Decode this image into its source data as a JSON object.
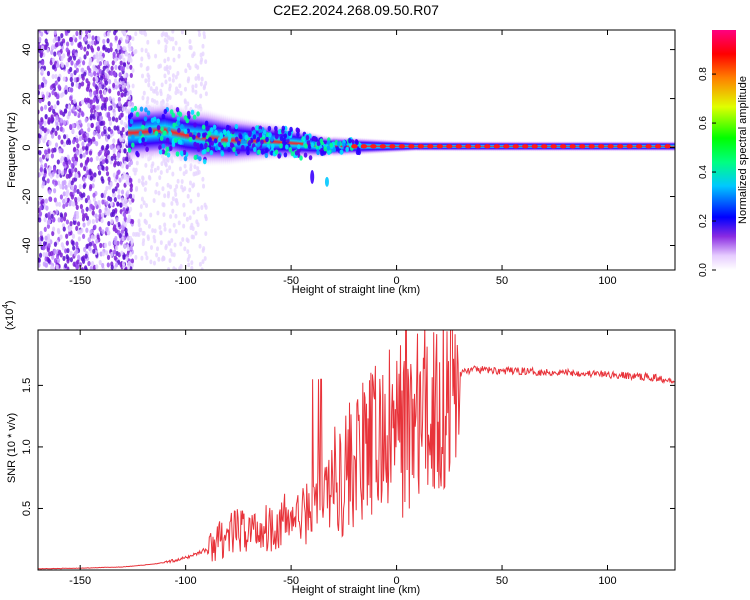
{
  "figure": {
    "title": "C2E2.2024.268.09.50.R07"
  },
  "chart_data": [
    {
      "type": "heatmap",
      "xlabel": "Height of straight line (km)",
      "ylabel": "Frequency (Hz)",
      "xlim": [
        -170,
        132
      ],
      "ylim": [
        -50,
        48
      ],
      "xticks": [
        "-150",
        "-100",
        "-50",
        "0",
        "50",
        "100"
      ],
      "yticks": [
        "40",
        "20",
        "0",
        "-20",
        "-40"
      ],
      "colorbar": {
        "label": "Normalized spectral amplitude",
        "range": [
          0,
          0.98
        ],
        "ticks": [
          "0.0",
          "0.2",
          "0.4",
          "0.6",
          "0.8"
        ]
      },
      "band_center_hz": [
        {
          "x": -125,
          "y": 6
        },
        {
          "x": -110,
          "y": 7
        },
        {
          "x": -100,
          "y": 5
        },
        {
          "x": -80,
          "y": 3
        },
        {
          "x": -60,
          "y": 2.5
        },
        {
          "x": -45,
          "y": 1.5
        },
        {
          "x": -35,
          "y": 0.5
        },
        {
          "x": -20,
          "y": 0.5
        },
        {
          "x": 0,
          "y": 0.5
        },
        {
          "x": 50,
          "y": 0.5
        },
        {
          "x": 100,
          "y": 0.5
        },
        {
          "x": 130,
          "y": 0.5
        }
      ]
    },
    {
      "type": "line",
      "xlabel": "Height of straight line (km)",
      "ylabel": "SNR (10 * v/v)",
      "multiplier": "(x10",
      "multiplier_exp": "4",
      "xlim": [
        -170,
        132
      ],
      "ylim": [
        0,
        1.95
      ],
      "xticks": [
        "-150",
        "-100",
        "-50",
        "0",
        "50",
        "100"
      ],
      "yticks": [
        "0.5",
        "1.0",
        "1.5"
      ],
      "color": "#e8333a",
      "series": [
        {
          "x": [
            -170,
            -150,
            -130,
            -120,
            -110,
            -100,
            -90,
            -85,
            -80,
            -75,
            -70,
            -65,
            -60,
            -55,
            -50,
            -45,
            -40,
            -35,
            -30,
            -25,
            -20,
            -15,
            -10,
            -5,
            0,
            5,
            10,
            15,
            20,
            25,
            30,
            35,
            40,
            50,
            60,
            70,
            80,
            90,
            100,
            110,
            120,
            125,
            132
          ],
          "y": [
            0.01,
            0.015,
            0.025,
            0.04,
            0.06,
            0.1,
            0.17,
            0.25,
            0.3,
            0.33,
            0.35,
            0.35,
            0.38,
            0.4,
            0.45,
            0.45,
            0.55,
            0.65,
            0.75,
            0.85,
            0.95,
            1.0,
            1.1,
            1.15,
            1.2,
            1.25,
            1.3,
            1.35,
            1.45,
            1.55,
            1.6,
            1.63,
            1.63,
            1.62,
            1.62,
            1.61,
            1.61,
            1.6,
            1.59,
            1.58,
            1.57,
            1.56,
            1.55
          ]
        }
      ]
    }
  ]
}
